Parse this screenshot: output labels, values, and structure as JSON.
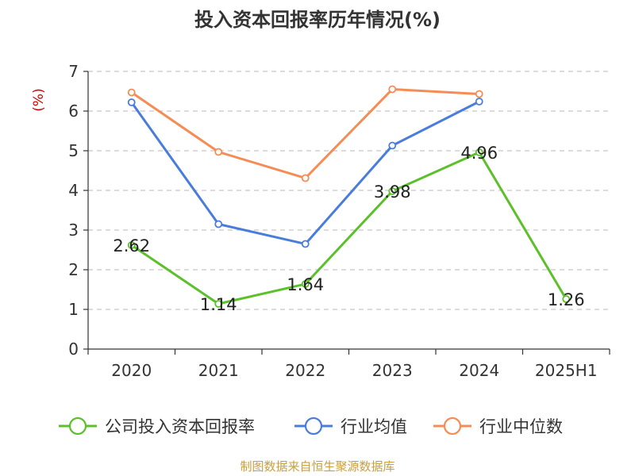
{
  "chart_data": {
    "type": "line",
    "title": "投入资本回报率历年情况(%)",
    "ylabel": "(%)",
    "xlabel": "",
    "categories": [
      "2020",
      "2021",
      "2022",
      "2023",
      "2024",
      "2025H1"
    ],
    "ylim": [
      0,
      7
    ],
    "yticks": [
      "0",
      "1",
      "2",
      "3",
      "4",
      "5",
      "6",
      "7"
    ],
    "grid": true,
    "legend_position": "bottom",
    "series": [
      {
        "name": "公司投入资本回报率",
        "color": "#5bc02a",
        "values": [
          2.62,
          1.14,
          1.64,
          3.98,
          4.96,
          1.26
        ],
        "labels": [
          "2.62",
          "1.14",
          "1.64",
          "3.98",
          "4.96",
          "1.26"
        ]
      },
      {
        "name": "行业均值",
        "color": "#4a7ddb",
        "values": [
          6.22,
          3.15,
          2.65,
          5.13,
          6.24,
          null
        ]
      },
      {
        "name": "行业中位数",
        "color": "#f58c55",
        "values": [
          6.47,
          4.97,
          4.31,
          6.55,
          6.43,
          null
        ]
      }
    ],
    "source": "制图数据来自恒生聚源数据库"
  }
}
